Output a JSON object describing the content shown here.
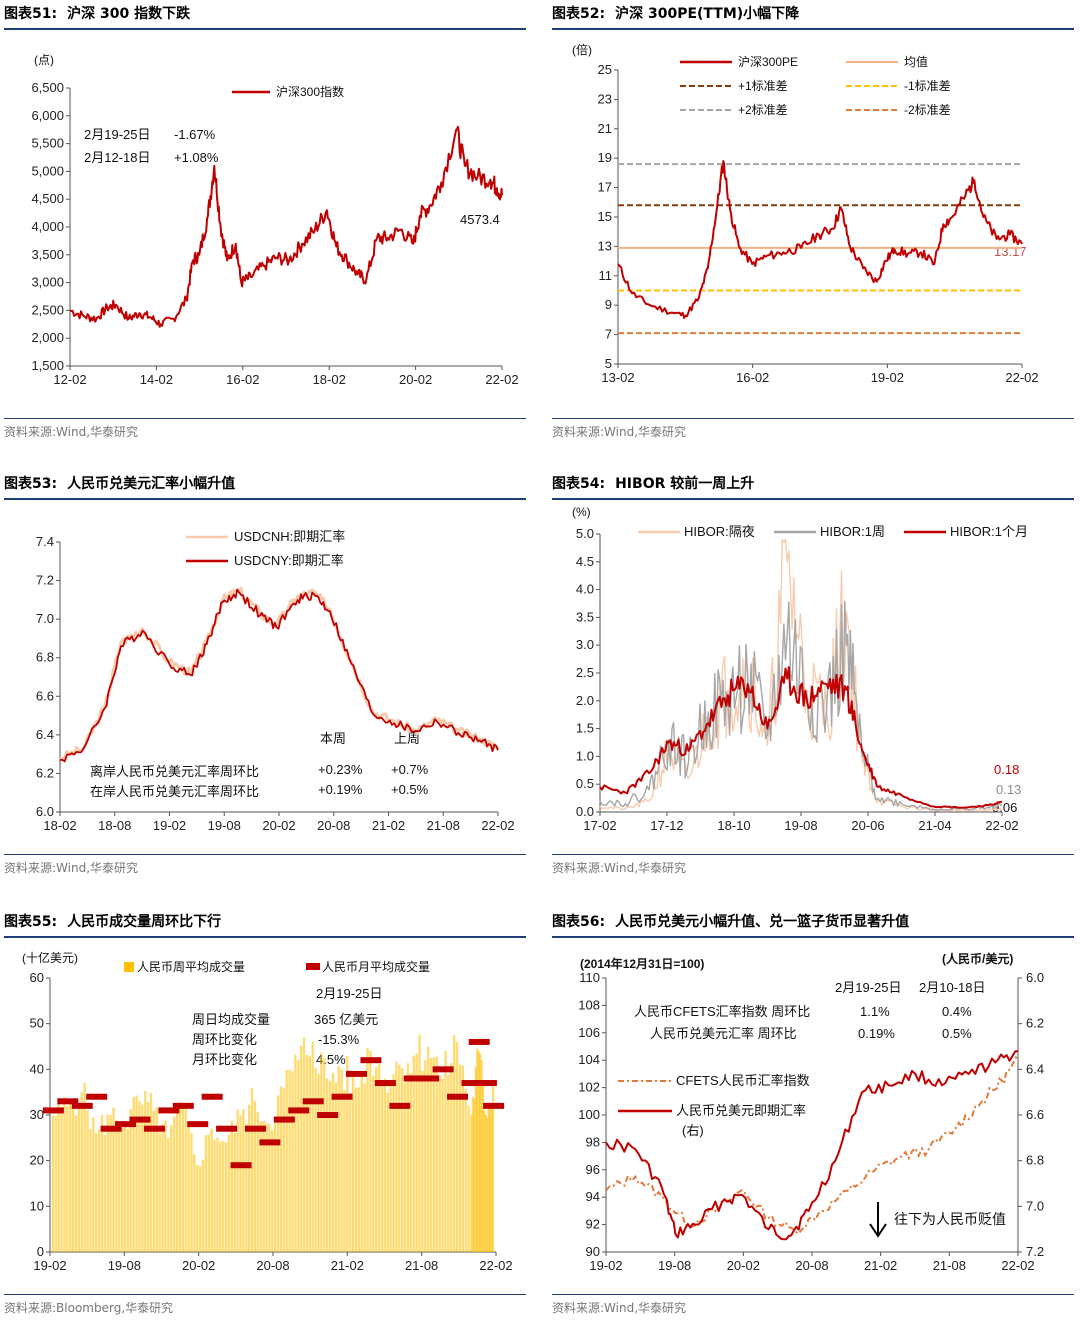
{
  "watermark": "Wind",
  "charts": [
    {
      "id": "c51",
      "number": "图表51:",
      "title": "沪深 300 指数下跌",
      "source": "资料来源:Wind,华泰研究",
      "unit": "(点)",
      "legend": [
        "沪深300指数"
      ],
      "annotations": [
        {
          "label": "2月19-25日",
          "value": "-1.67%"
        },
        {
          "label": "2月12-18日",
          "value": "+1.08%"
        }
      ],
      "end_label": "4573.4"
    },
    {
      "id": "c52",
      "number": "图表52:",
      "title": "沪深 300PE(TTM)小幅下降",
      "source": "资料来源:Wind,华泰研究",
      "unit": "(倍)",
      "legend": [
        "沪深300PE",
        "均值",
        "+1标准差",
        "-1标准差",
        "+2标准差",
        "-2标准差"
      ],
      "end_label": "13.17"
    },
    {
      "id": "c53",
      "number": "图表53:",
      "title": "人民币兑美元汇率小幅升值",
      "source": "资料来源:Wind,华泰研究",
      "legend": [
        "USDCNH:即期汇率",
        "USDCNY:即期汇率"
      ],
      "table_header": [
        "本周",
        "上周"
      ],
      "table_rows": [
        {
          "label": "离岸人民币兑美元汇率周环比",
          "this": "+0.23%",
          "last": "+0.7%"
        },
        {
          "label": "在岸人民币兑美元汇率周环比",
          "this": "+0.19%",
          "last": "+0.5%"
        }
      ]
    },
    {
      "id": "c54",
      "number": "图表54:",
      "title": "HIBOR 较前一周上升",
      "source": "资料来源:Wind,华泰研究",
      "unit": "(%)",
      "legend": [
        "HIBOR:隔夜",
        "HIBOR:1周",
        "HIBOR:1个月"
      ],
      "end_labels": [
        "0.18",
        "0.13",
        "0.06"
      ]
    },
    {
      "id": "c55",
      "number": "图表55:",
      "title": "人民币成交量周环比下行",
      "source": "资料来源:Bloomberg,华泰研究",
      "unit": "(十亿美元)",
      "legend": [
        "人民币周平均成交量",
        "人民币月平均成交量"
      ],
      "ann_date": "2月19-25日",
      "ann_rows": [
        {
          "label": "周日均成交量",
          "value": "365 亿美元"
        },
        {
          "label": "周环比变化",
          "value": "-15.3%"
        },
        {
          "label": "月环比变化",
          "value": "4.5%"
        }
      ]
    },
    {
      "id": "c56",
      "number": "图表56:",
      "title": "人民币兑美元小幅升值、兑一篮子货币显著升值",
      "source": "资料来源:Wind,华泰研究",
      "unit_left": "(2014年12月31日=100)",
      "unit_right": "(人民币/美元)",
      "legend": [
        "CFETS人民币汇率指数",
        "人民币兑美元即期汇率",
        "(右)"
      ],
      "table_header": [
        "2月19-25日",
        "2月10-18日"
      ],
      "table_rows": [
        {
          "label": "人民币CFETS汇率指数 周环比",
          "this": "1.1%",
          "last": "0.4%"
        },
        {
          "label": "人民币兑美元汇率   周环比",
          "this": "0.19%",
          "last": "0.5%"
        }
      ],
      "arrow_text": "往下为人民币贬值"
    }
  ],
  "chart_data": [
    {
      "type": "line",
      "title": "沪深 300 指数下跌",
      "ylabel": "(点)",
      "ylim": [
        1500,
        6500
      ],
      "y_ticks": [
        "1,500",
        "2,000",
        "2,500",
        "3,000",
        "3,500",
        "4,000",
        "4,500",
        "5,000",
        "5,500",
        "6,000",
        "6,500"
      ],
      "x_ticks": [
        "12-02",
        "14-02",
        "16-02",
        "18-02",
        "20-02",
        "22-02"
      ],
      "xlim": [
        2012.08,
        2022.17
      ],
      "series": [
        {
          "name": "沪深300指数",
          "color": "#c00000",
          "x": [
            2012.08,
            2012.4,
            2012.7,
            2012.95,
            2013.15,
            2013.45,
            2013.7,
            2013.95,
            2014.2,
            2014.5,
            2014.8,
            2014.95,
            2015.1,
            2015.3,
            2015.45,
            2015.6,
            2015.75,
            2015.95,
            2016.08,
            2016.3,
            2016.6,
            2016.9,
            2017.2,
            2017.5,
            2017.8,
            2018.08,
            2018.3,
            2018.55,
            2018.8,
            2019.0,
            2019.25,
            2019.5,
            2019.8,
            2020.1,
            2020.25,
            2020.5,
            2020.75,
            2021.1,
            2021.3,
            2021.6,
            2021.9,
            2022.05,
            2022.17
          ],
          "values": [
            2500,
            2400,
            2350,
            2550,
            2600,
            2350,
            2450,
            2380,
            2250,
            2350,
            2700,
            3400,
            3500,
            4200,
            5100,
            4000,
            3400,
            3700,
            3000,
            3100,
            3300,
            3450,
            3400,
            3700,
            3950,
            4300,
            3650,
            3400,
            3150,
            3050,
            3800,
            3800,
            3950,
            3700,
            4200,
            4400,
            4800,
            5750,
            5100,
            4900,
            4850,
            4700,
            4573.4
          ]
        }
      ]
    },
    {
      "type": "line",
      "title": "沪深 300PE(TTM)小幅下降",
      "ylabel": "(倍)",
      "ylim": [
        5,
        25
      ],
      "y_ticks": [
        "5",
        "7",
        "9",
        "11",
        "13",
        "15",
        "17",
        "19",
        "21",
        "23",
        "25"
      ],
      "x_ticks": [
        "13-02",
        "16-02",
        "19-02",
        "22-02"
      ],
      "xlim": [
        2013.08,
        2022.17
      ],
      "series": [
        {
          "name": "沪深300PE",
          "color": "#c00000",
          "x": [
            2013.08,
            2013.4,
            2013.8,
            2014.3,
            2014.6,
            2014.9,
            2015.1,
            2015.3,
            2015.45,
            2015.6,
            2015.8,
            2016.1,
            2016.4,
            2016.8,
            2017.2,
            2017.6,
            2017.9,
            2018.1,
            2018.3,
            2018.6,
            2018.9,
            2019.1,
            2019.3,
            2019.6,
            2019.9,
            2020.2,
            2020.4,
            2020.6,
            2020.9,
            2021.1,
            2021.3,
            2021.6,
            2021.9,
            2022.17
          ],
          "values": [
            11.8,
            9.8,
            9.0,
            8.5,
            8.3,
            9.5,
            11.5,
            15.5,
            18.8,
            15.5,
            13.0,
            11.8,
            12.3,
            12.6,
            12.9,
            13.8,
            14.2,
            15.6,
            13.0,
            11.5,
            10.6,
            12.0,
            12.8,
            12.5,
            12.6,
            11.8,
            14.5,
            15.0,
            16.5,
            17.5,
            15.0,
            13.5,
            13.8,
            13.17
          ]
        },
        {
          "name": "均值",
          "color": "#f4b183",
          "dash": "",
          "values": [
            12.9
          ]
        },
        {
          "name": "+1标准差",
          "color": "#843c0c",
          "dash": "6 3",
          "values": [
            15.8
          ]
        },
        {
          "name": "-1标准差",
          "color": "#ffc000",
          "dash": "6 3",
          "values": [
            10.0
          ]
        },
        {
          "name": "+2标准差",
          "color": "#a6a6a6",
          "dash": "6 3",
          "values": [
            18.6
          ]
        },
        {
          "name": "-2标准差",
          "color": "#e07b39",
          "dash": "6 3",
          "values": [
            7.1
          ]
        }
      ]
    },
    {
      "type": "line",
      "title": "人民币兑美元汇率小幅升值",
      "ylim": [
        6.0,
        7.4
      ],
      "y_ticks": [
        "6.0",
        "6.2",
        "6.4",
        "6.6",
        "6.8",
        "7.0",
        "7.2",
        "7.4"
      ],
      "x_ticks": [
        "18-02",
        "18-08",
        "19-02",
        "19-08",
        "20-02",
        "20-08",
        "21-02",
        "21-08",
        "22-02"
      ],
      "xlim": [
        2018.08,
        2022.17
      ],
      "series": [
        {
          "name": "USDCNH:即期汇率",
          "color": "#f8cbad",
          "x": [
            2018.08,
            2018.3,
            2018.5,
            2018.65,
            2018.85,
            2019.1,
            2019.3,
            2019.45,
            2019.6,
            2019.75,
            2019.95,
            2020.1,
            2020.3,
            2020.45,
            2020.6,
            2020.8,
            2021.0,
            2021.2,
            2021.4,
            2021.6,
            2021.8,
            2022.0,
            2022.17
          ],
          "values": [
            6.28,
            6.33,
            6.55,
            6.88,
            6.95,
            6.78,
            6.72,
            6.88,
            7.1,
            7.15,
            7.03,
            6.97,
            7.12,
            7.14,
            7.05,
            6.78,
            6.52,
            6.47,
            6.42,
            6.48,
            6.42,
            6.38,
            6.33
          ]
        },
        {
          "name": "USDCNY:即期汇率",
          "color": "#c00000",
          "x": [
            2018.08,
            2018.3,
            2018.5,
            2018.65,
            2018.85,
            2019.1,
            2019.3,
            2019.45,
            2019.6,
            2019.75,
            2019.95,
            2020.1,
            2020.3,
            2020.45,
            2020.6,
            2020.8,
            2021.0,
            2021.2,
            2021.4,
            2021.6,
            2021.8,
            2022.0,
            2022.17
          ],
          "values": [
            6.27,
            6.33,
            6.54,
            6.86,
            6.94,
            6.77,
            6.71,
            6.87,
            7.09,
            7.14,
            7.02,
            6.96,
            7.1,
            7.13,
            7.04,
            6.77,
            6.51,
            6.46,
            6.42,
            6.47,
            6.41,
            6.37,
            6.32
          ]
        }
      ]
    },
    {
      "type": "line",
      "title": "HIBOR 较前一周上升",
      "ylabel": "(%)",
      "ylim": [
        0,
        5.0
      ],
      "y_ticks": [
        "0.0",
        "0.5",
        "1.0",
        "1.5",
        "2.0",
        "2.5",
        "3.0",
        "3.5",
        "4.0",
        "4.5",
        "5.0"
      ],
      "x_ticks": [
        "17-02",
        "17-12",
        "18-10",
        "19-08",
        "20-06",
        "21-04",
        "22-02"
      ],
      "xlim": [
        2017.08,
        2022.17
      ],
      "series": [
        {
          "name": "HIBOR:隔夜",
          "color": "#f8cbad",
          "x": [
            2017.08,
            2017.4,
            2017.7,
            2017.95,
            2018.2,
            2018.45,
            2018.7,
            2018.95,
            2019.2,
            2019.45,
            2019.7,
            2019.95,
            2020.2,
            2020.4,
            2020.6,
            2020.9,
            2021.3,
            2021.7,
            2022.0,
            2022.17
          ],
          "values": [
            0.1,
            0.05,
            0.2,
            1.1,
            0.6,
            1.6,
            2.2,
            2.6,
            1.2,
            4.5,
            2.2,
            1.8,
            3.6,
            0.9,
            0.2,
            0.1,
            0.03,
            0.02,
            0.04,
            0.06
          ]
        },
        {
          "name": "HIBOR:1周",
          "color": "#a6a6a6",
          "x": [
            2017.08,
            2017.4,
            2017.7,
            2017.95,
            2018.2,
            2018.45,
            2018.7,
            2018.95,
            2019.2,
            2019.45,
            2019.7,
            2019.95,
            2020.2,
            2020.4,
            2020.6,
            2020.9,
            2021.3,
            2021.7,
            2022.0,
            2022.17
          ],
          "values": [
            0.2,
            0.15,
            0.4,
            1.3,
            0.9,
            1.8,
            2.0,
            2.4,
            1.4,
            3.2,
            2.1,
            1.9,
            3.0,
            1.0,
            0.25,
            0.15,
            0.05,
            0.05,
            0.08,
            0.13
          ]
        },
        {
          "name": "HIBOR:1个月",
          "color": "#c00000",
          "x": [
            2017.08,
            2017.4,
            2017.7,
            2017.95,
            2018.2,
            2018.45,
            2018.7,
            2018.95,
            2019.2,
            2019.45,
            2019.7,
            2019.95,
            2020.2,
            2020.4,
            2020.6,
            2020.9,
            2021.3,
            2021.7,
            2022.0,
            2022.17
          ],
          "values": [
            0.45,
            0.35,
            0.7,
            1.25,
            1.1,
            1.6,
            2.1,
            2.3,
            1.5,
            2.4,
            2.0,
            2.3,
            2.2,
            1.1,
            0.45,
            0.3,
            0.1,
            0.08,
            0.12,
            0.18
          ]
        }
      ]
    },
    {
      "type": "bar",
      "title": "人民币成交量周环比下行",
      "ylabel": "(十亿美元)",
      "ylim": [
        0,
        60
      ],
      "y_ticks": [
        "0",
        "10",
        "20",
        "30",
        "40",
        "50",
        "60"
      ],
      "x_ticks": [
        "19-02",
        "19-08",
        "20-02",
        "20-08",
        "21-02",
        "21-08",
        "22-02"
      ],
      "xlim": [
        2019.08,
        2022.17
      ],
      "weekly": {
        "name": "人民币周平均成交量",
        "color": "#ffc000",
        "x": [
          2019.1,
          2019.2,
          2019.3,
          2019.4,
          2019.5,
          2019.6,
          2019.7,
          2019.8,
          2019.9,
          2020.0,
          2020.1,
          2020.2,
          2020.3,
          2020.4,
          2020.5,
          2020.6,
          2020.7,
          2020.8,
          2020.9,
          2021.0,
          2021.1,
          2021.2,
          2021.3,
          2021.4,
          2021.5,
          2021.6,
          2021.7,
          2021.8,
          2021.9,
          2022.0,
          2022.05,
          2022.1,
          2022.15
        ],
        "values": [
          30,
          32,
          35,
          26,
          30,
          28,
          33,
          31,
          25,
          32,
          19,
          27,
          24,
          30,
          33,
          28,
          36,
          42,
          46,
          38,
          40,
          36,
          44,
          38,
          41,
          43,
          45,
          38,
          46,
          30,
          44,
          30,
          36.5
        ]
      },
      "monthly": {
        "name": "人民币月平均成交量",
        "color": "#c00000",
        "x": [
          2019.1,
          2019.2,
          2019.3,
          2019.4,
          2019.5,
          2019.6,
          2019.7,
          2019.8,
          2019.9,
          2020.0,
          2020.1,
          2020.2,
          2020.3,
          2020.4,
          2020.5,
          2020.6,
          2020.7,
          2020.8,
          2020.9,
          2021.0,
          2021.1,
          2021.2,
          2021.3,
          2021.4,
          2021.5,
          2021.6,
          2021.7,
          2021.8,
          2021.9,
          2022.0,
          2022.05,
          2022.1,
          2022.15
        ],
        "values": [
          31,
          33,
          32,
          34,
          27,
          28,
          29,
          27,
          31,
          32,
          28,
          34,
          27,
          19,
          27,
          24,
          29,
          31,
          33,
          30,
          34,
          39,
          42,
          37,
          32,
          38,
          38,
          40,
          34,
          37,
          46,
          37,
          32
        ]
      }
    },
    {
      "type": "line",
      "title": "人民币兑美元小幅升值、兑一篮子货币显著升值",
      "ylabel": "(2014年12月31日=100)",
      "ylabel_right": "(人民币/美元)",
      "ylim": [
        90,
        110
      ],
      "ylim_right": [
        7.2,
        6.0
      ],
      "y_ticks": [
        "90",
        "92",
        "94",
        "96",
        "98",
        "100",
        "102",
        "104",
        "106",
        "108",
        "110"
      ],
      "y_ticks_right": [
        "6.0",
        "6.2",
        "6.4",
        "6.6",
        "6.8",
        "7.0",
        "7.2"
      ],
      "x_ticks": [
        "19-02",
        "19-08",
        "20-02",
        "20-08",
        "21-02",
        "21-08",
        "22-02"
      ],
      "xlim": [
        2019.08,
        2022.17
      ],
      "series": [
        {
          "name": "CFETS人民币汇率指数",
          "color": "#e07b39",
          "dash": "6 3 2 3",
          "x": [
            2019.08,
            2019.3,
            2019.5,
            2019.7,
            2019.9,
            2020.1,
            2020.3,
            2020.5,
            2020.7,
            2020.9,
            2021.1,
            2021.3,
            2021.5,
            2021.7,
            2021.9,
            2022.05,
            2022.17
          ],
          "values": [
            94.5,
            95.5,
            94.0,
            92.0,
            93.0,
            94.5,
            92.5,
            91.5,
            93.0,
            94.5,
            96.0,
            97.0,
            97.5,
            99.0,
            101.0,
            102.5,
            104.0
          ]
        },
        {
          "name": "人民币兑美元即期汇率(右)",
          "color": "#c00000",
          "x": [
            2019.08,
            2019.3,
            2019.5,
            2019.6,
            2019.75,
            2019.95,
            2020.1,
            2020.3,
            2020.45,
            2020.6,
            2020.8,
            2021.0,
            2021.2,
            2021.4,
            2021.6,
            2021.8,
            2022.0,
            2022.17
          ],
          "values": [
            6.72,
            6.75,
            6.92,
            7.12,
            7.08,
            6.98,
            6.95,
            7.1,
            7.13,
            7.02,
            6.8,
            6.5,
            6.47,
            6.42,
            6.47,
            6.42,
            6.37,
            6.32
          ]
        }
      ]
    }
  ]
}
